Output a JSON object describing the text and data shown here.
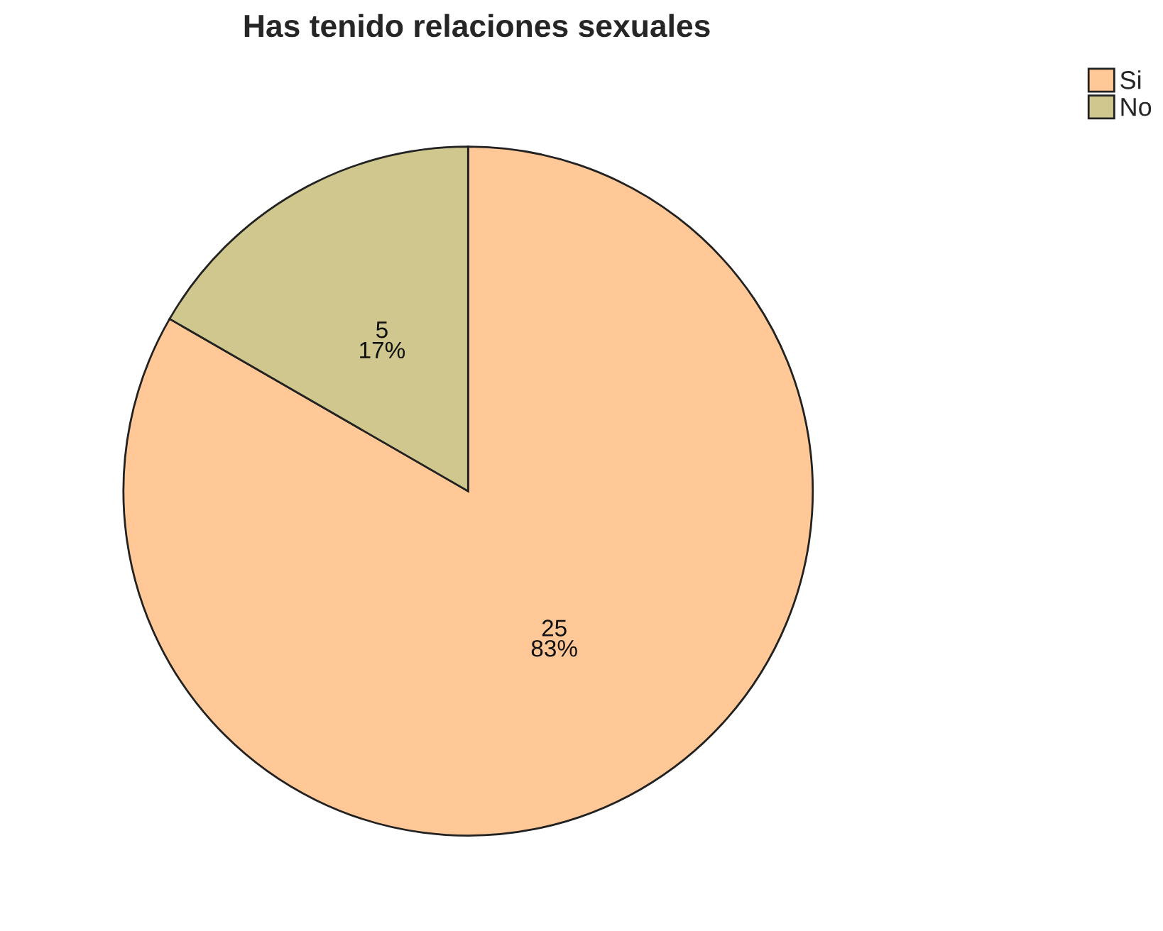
{
  "chart_data": {
    "type": "pie",
    "title": "Has tenido relaciones sexuales",
    "categories": [
      "Si",
      "No"
    ],
    "values": [
      25,
      5
    ],
    "colors": [
      "#ffc896",
      "#cfc78e"
    ],
    "value_labels": [
      "25\n83%",
      "5\n17%"
    ],
    "legend": "top right"
  }
}
